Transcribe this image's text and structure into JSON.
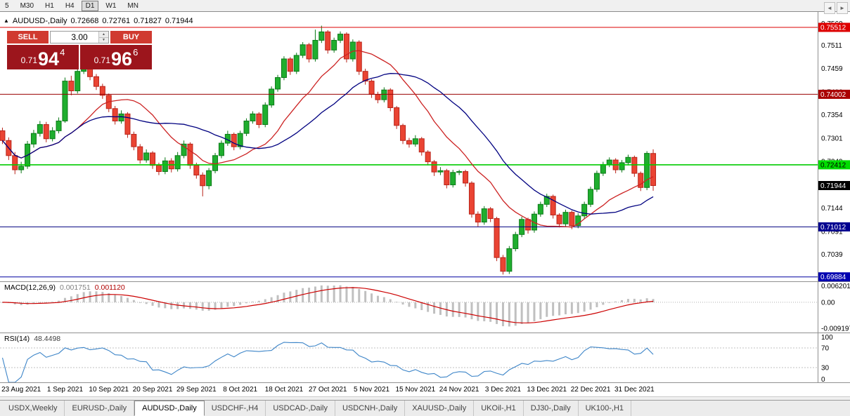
{
  "toolbar": {
    "timeframes": [
      {
        "label": "5",
        "active": false
      },
      {
        "label": "M30",
        "active": false
      },
      {
        "label": "H1",
        "active": false
      },
      {
        "label": "H4",
        "active": false
      },
      {
        "label": "D1",
        "active": true
      },
      {
        "label": "W1",
        "active": false
      },
      {
        "label": "MN",
        "active": false
      }
    ]
  },
  "chart_header": {
    "collapse_icon": "▲",
    "symbol": "AUDUSD-,Daily",
    "open": "0.72668",
    "high": "0.72761",
    "low": "0.71827",
    "close": "0.71944"
  },
  "trade_panel": {
    "sell_label": "SELL",
    "buy_label": "BUY",
    "volume": "3.00",
    "spinner_up_icon": "▲",
    "spinner_down_icon": "▼",
    "sell_price": {
      "prefix": "0.71",
      "big": "94",
      "pip": "4"
    },
    "buy_price": {
      "prefix": "0.71",
      "big": "96",
      "pip": "6"
    }
  },
  "tabs": {
    "items": [
      {
        "label": "USDX,Weekly",
        "active": false
      },
      {
        "label": "EURUSD-,Daily",
        "active": false
      },
      {
        "label": "AUDUSD-,Daily",
        "active": true
      },
      {
        "label": "USDCHF-,H4",
        "active": false
      },
      {
        "label": "USDCAD-,Daily",
        "active": false
      },
      {
        "label": "USDCNH-,Daily",
        "active": false
      },
      {
        "label": "XAUUSD-,Daily",
        "active": false
      },
      {
        "label": "UKOil-,H1",
        "active": false
      },
      {
        "label": "DJ30-,Daily",
        "active": false
      },
      {
        "label": "UK100-,H1",
        "active": false
      }
    ],
    "scroll_left_icon": "◄",
    "scroll_right_icon": "►"
  },
  "chart_data": {
    "type": "candlestick",
    "title": "AUDUSD-,Daily",
    "ylim": [
      0.698,
      0.7586
    ],
    "colors": {
      "up": "#1fae2e",
      "up_border": "#0c7a18",
      "down": "#ea4433",
      "down_border": "#b8241a",
      "scale_text": "#000000"
    },
    "ohlc": [
      [
        0.7318,
        0.7325,
        0.7288,
        0.7296
      ],
      [
        0.7296,
        0.7303,
        0.7252,
        0.7262
      ],
      [
        0.7262,
        0.727,
        0.722,
        0.723
      ],
      [
        0.723,
        0.7248,
        0.7222,
        0.7238
      ],
      [
        0.7238,
        0.7295,
        0.7232,
        0.7288
      ],
      [
        0.7288,
        0.732,
        0.728,
        0.7312
      ],
      [
        0.7312,
        0.734,
        0.7305,
        0.7332
      ],
      [
        0.7332,
        0.7338,
        0.7292,
        0.73
      ],
      [
        0.73,
        0.7326,
        0.7294,
        0.7318
      ],
      [
        0.7318,
        0.7348,
        0.7312,
        0.734
      ],
      [
        0.734,
        0.7438,
        0.7336,
        0.743
      ],
      [
        0.743,
        0.7442,
        0.7398,
        0.7408
      ],
      [
        0.7408,
        0.746,
        0.7402,
        0.7452
      ],
      [
        0.7452,
        0.7478,
        0.7446,
        0.747
      ],
      [
        0.747,
        0.7474,
        0.7432,
        0.744
      ],
      [
        0.744,
        0.7446,
        0.741,
        0.7418
      ],
      [
        0.7418,
        0.7424,
        0.739,
        0.7398
      ],
      [
        0.7398,
        0.7402,
        0.736,
        0.7368
      ],
      [
        0.7368,
        0.7374,
        0.7332,
        0.734
      ],
      [
        0.734,
        0.7364,
        0.7334,
        0.7356
      ],
      [
        0.7356,
        0.736,
        0.7302,
        0.731
      ],
      [
        0.731,
        0.7316,
        0.7274,
        0.7282
      ],
      [
        0.7282,
        0.7288,
        0.7244,
        0.7252
      ],
      [
        0.7252,
        0.7276,
        0.7246,
        0.7268
      ],
      [
        0.7268,
        0.7272,
        0.7232,
        0.724
      ],
      [
        0.724,
        0.7246,
        0.7218,
        0.7226
      ],
      [
        0.7226,
        0.7258,
        0.722,
        0.725
      ],
      [
        0.725,
        0.7256,
        0.7224,
        0.7232
      ],
      [
        0.7232,
        0.727,
        0.7226,
        0.7262
      ],
      [
        0.7262,
        0.7296,
        0.7256,
        0.7288
      ],
      [
        0.7288,
        0.7292,
        0.7232,
        0.724
      ],
      [
        0.724,
        0.7246,
        0.721,
        0.7218
      ],
      [
        0.7218,
        0.7224,
        0.717,
        0.7194
      ],
      [
        0.7194,
        0.7234,
        0.7186,
        0.7228
      ],
      [
        0.7228,
        0.7268,
        0.7222,
        0.7262
      ],
      [
        0.7262,
        0.7296,
        0.7256,
        0.729
      ],
      [
        0.729,
        0.7318,
        0.7284,
        0.731
      ],
      [
        0.731,
        0.7314,
        0.7274,
        0.7282
      ],
      [
        0.7282,
        0.7318,
        0.7276,
        0.7312
      ],
      [
        0.7312,
        0.7346,
        0.7306,
        0.734
      ],
      [
        0.734,
        0.7362,
        0.7334,
        0.7356
      ],
      [
        0.7356,
        0.736,
        0.7324,
        0.7332
      ],
      [
        0.7332,
        0.7382,
        0.7326,
        0.7376
      ],
      [
        0.7376,
        0.7418,
        0.737,
        0.7412
      ],
      [
        0.7412,
        0.7444,
        0.7406,
        0.7438
      ],
      [
        0.7438,
        0.7486,
        0.7432,
        0.748
      ],
      [
        0.748,
        0.7484,
        0.7444,
        0.7452
      ],
      [
        0.7452,
        0.7494,
        0.7446,
        0.7488
      ],
      [
        0.7488,
        0.7518,
        0.7482,
        0.7512
      ],
      [
        0.7512,
        0.7516,
        0.7472,
        0.748
      ],
      [
        0.748,
        0.7546,
        0.7474,
        0.7522
      ],
      [
        0.7522,
        0.7555,
        0.7516,
        0.7541
      ],
      [
        0.7541,
        0.7545,
        0.7492,
        0.75
      ],
      [
        0.75,
        0.7528,
        0.7494,
        0.7522
      ],
      [
        0.7522,
        0.7542,
        0.7516,
        0.7536
      ],
      [
        0.7536,
        0.754,
        0.7472,
        0.748
      ],
      [
        0.748,
        0.7524,
        0.7474,
        0.7518
      ],
      [
        0.7518,
        0.7522,
        0.7444,
        0.7452
      ],
      [
        0.7452,
        0.7458,
        0.7422,
        0.743
      ],
      [
        0.743,
        0.7434,
        0.7392,
        0.74
      ],
      [
        0.74,
        0.7406,
        0.738,
        0.7388
      ],
      [
        0.7388,
        0.7416,
        0.7382,
        0.741
      ],
      [
        0.741,
        0.7414,
        0.7362,
        0.737
      ],
      [
        0.737,
        0.7374,
        0.7322,
        0.733
      ],
      [
        0.733,
        0.7334,
        0.7288,
        0.7296
      ],
      [
        0.7296,
        0.7302,
        0.728,
        0.7288
      ],
      [
        0.7288,
        0.7308,
        0.7282,
        0.73
      ],
      [
        0.73,
        0.7304,
        0.7262,
        0.727
      ],
      [
        0.727,
        0.7274,
        0.724,
        0.7248
      ],
      [
        0.7248,
        0.7252,
        0.7216,
        0.7225
      ],
      [
        0.7225,
        0.7236,
        0.7218,
        0.7228
      ],
      [
        0.7228,
        0.7232,
        0.7188,
        0.7196
      ],
      [
        0.7196,
        0.723,
        0.719,
        0.7224
      ],
      [
        0.7224,
        0.723,
        0.7218,
        0.7226
      ],
      [
        0.7226,
        0.723,
        0.7192,
        0.72
      ],
      [
        0.72,
        0.7204,
        0.7122,
        0.713
      ],
      [
        0.713,
        0.7136,
        0.7102,
        0.7112
      ],
      [
        0.7112,
        0.7148,
        0.7106,
        0.7142
      ],
      [
        0.7142,
        0.7146,
        0.7112,
        0.712
      ],
      [
        0.712,
        0.7124,
        0.7024,
        0.7032
      ],
      [
        0.7032,
        0.7038,
        0.69937,
        0.7001
      ],
      [
        0.7001,
        0.7058,
        0.6995,
        0.7052
      ],
      [
        0.7052,
        0.709,
        0.7046,
        0.7084
      ],
      [
        0.7084,
        0.7124,
        0.7078,
        0.7118
      ],
      [
        0.7118,
        0.7122,
        0.7086,
        0.7094
      ],
      [
        0.7094,
        0.7136,
        0.7088,
        0.713
      ],
      [
        0.713,
        0.7158,
        0.7124,
        0.7152
      ],
      [
        0.7152,
        0.7176,
        0.7146,
        0.717
      ],
      [
        0.717,
        0.7174,
        0.712,
        0.7128
      ],
      [
        0.7128,
        0.7132,
        0.71,
        0.7108
      ],
      [
        0.7108,
        0.714,
        0.7102,
        0.7134
      ],
      [
        0.7134,
        0.7138,
        0.7096,
        0.7104
      ],
      [
        0.7104,
        0.7132,
        0.7098,
        0.7126
      ],
      [
        0.7126,
        0.7158,
        0.712,
        0.7152
      ],
      [
        0.7152,
        0.7192,
        0.7146,
        0.7186
      ],
      [
        0.7186,
        0.7228,
        0.718,
        0.7222
      ],
      [
        0.7222,
        0.7248,
        0.7216,
        0.7242
      ],
      [
        0.7242,
        0.7258,
        0.7236,
        0.7252
      ],
      [
        0.7252,
        0.7256,
        0.7222,
        0.723
      ],
      [
        0.723,
        0.7252,
        0.7224,
        0.7246
      ],
      [
        0.7246,
        0.7264,
        0.724,
        0.7258
      ],
      [
        0.7258,
        0.7262,
        0.7214,
        0.7222
      ],
      [
        0.7222,
        0.7226,
        0.7182,
        0.719
      ],
      [
        0.719,
        0.7272,
        0.7184,
        0.7267
      ],
      [
        0.72668,
        0.72761,
        0.71827,
        0.71944
      ]
    ],
    "date_labels": [
      {
        "i": 3,
        "t": "23 Aug 2021"
      },
      {
        "i": 10,
        "t": "1 Sep 2021"
      },
      {
        "i": 17,
        "t": "10 Sep 2021"
      },
      {
        "i": 24,
        "t": "20 Sep 2021"
      },
      {
        "i": 31,
        "t": "29 Sep 2021"
      },
      {
        "i": 38,
        "t": "8 Oct 2021"
      },
      {
        "i": 45,
        "t": "18 Oct 2021"
      },
      {
        "i": 52,
        "t": "27 Oct 2021"
      },
      {
        "i": 59,
        "t": "5 Nov 2021"
      },
      {
        "i": 66,
        "t": "15 Nov 2021"
      },
      {
        "i": 73,
        "t": "24 Nov 2021"
      },
      {
        "i": 80,
        "t": "3 Dec 2021"
      },
      {
        "i": 87,
        "t": "13 Dec 2021"
      },
      {
        "i": 94,
        "t": "22 Dec 2021"
      },
      {
        "i": 101,
        "t": "31 Dec 2021"
      }
    ],
    "y_axis_labels": [
      "0.7560",
      "0.7511",
      "0.7459",
      "0.7406",
      "0.7354",
      "0.7301",
      "0.7249",
      "0.7196",
      "0.7144",
      "0.7091",
      "0.7039",
      "0.6986"
    ],
    "hlines": [
      {
        "price": 0.75512,
        "color": "#dd0000",
        "label": "0.75512",
        "bg": "#dd0000",
        "fg": "#ffffff",
        "width": 1
      },
      {
        "price": 0.74002,
        "color": "#990000",
        "label": "0.74002",
        "bg": "#aa0000",
        "fg": "#ffffff",
        "width": 1
      },
      {
        "price": 0.72412,
        "color": "#00cc00",
        "label": "0.72412",
        "bg": "#00dd00",
        "fg": "#000000",
        "width": 1.6
      },
      {
        "price": 0.71012,
        "color": "#000080",
        "label": "0.71012",
        "bg": "#000090",
        "fg": "#ffffff",
        "width": 1
      },
      {
        "price": 0.69884,
        "color": "#0000a0",
        "label": "0.69884",
        "bg": "#0000b0",
        "fg": "#ffffff",
        "width": 1
      }
    ],
    "current_price": {
      "value": 0.71944,
      "label": "0.71944",
      "bg": "#000000",
      "fg": "#ffffff"
    },
    "ma_lines": [
      {
        "period": 13,
        "color": "#cc2222"
      },
      {
        "period": 24,
        "color": "#000080"
      }
    ],
    "macd": {
      "label": "MACD(12,26,9)",
      "main_value": "0.001751",
      "signal_value": "0.001120",
      "fast": 12,
      "slow": 26,
      "signal": 9,
      "hist_color": "#c0c0c0",
      "signal_color": "#cc0000",
      "ylim": [
        -0.0105,
        0.0072
      ],
      "scale": [
        {
          "v": 0.006201,
          "t": "0.006201"
        },
        {
          "v": 0,
          "t": "0.00"
        },
        {
          "v": -0.009197,
          "t": "-0.009197"
        }
      ]
    },
    "rsi": {
      "label": "RSI(14)",
      "value": "48.4498",
      "period": 14,
      "color": "#3d85c8",
      "levels": [
        70,
        30
      ],
      "scale": [
        {
          "v": 100,
          "t": "100"
        },
        {
          "v": 70,
          "t": "70"
        },
        {
          "v": 30,
          "t": "30"
        },
        {
          "v": 0,
          "t": "0"
        }
      ]
    }
  }
}
